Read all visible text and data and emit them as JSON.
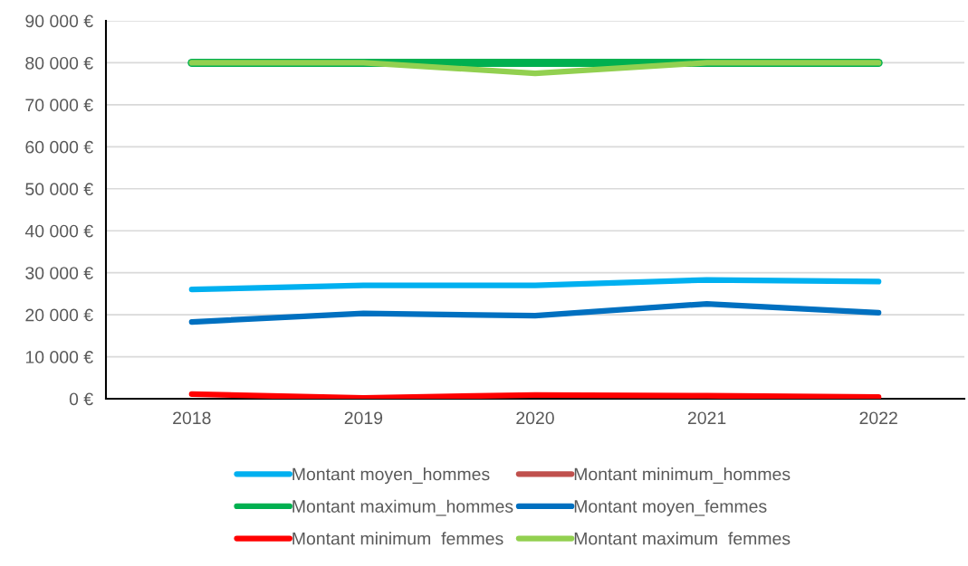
{
  "chart_data": {
    "type": "line",
    "categories": [
      "2018",
      "2019",
      "2020",
      "2021",
      "2022"
    ],
    "ylim": [
      0,
      90000
    ],
    "yticks": [
      {
        "value": 0,
        "label": "0 €"
      },
      {
        "value": 10000,
        "label": "10 000 €"
      },
      {
        "value": 20000,
        "label": "20 000 €"
      },
      {
        "value": 30000,
        "label": "30 000 €"
      },
      {
        "value": 40000,
        "label": "40 000 €"
      },
      {
        "value": 50000,
        "label": "50 000 €"
      },
      {
        "value": 60000,
        "label": "60 000 €"
      },
      {
        "value": 70000,
        "label": "70 000 €"
      },
      {
        "value": 80000,
        "label": "80 000 €"
      },
      {
        "value": 90000,
        "label": "90 000 €"
      }
    ],
    "grid": "y",
    "legend": "bottom",
    "marker": "none",
    "line_style": "solid",
    "series": [
      {
        "name": "Montant moyen_hommes",
        "color": "#00b0f0",
        "values": [
          26000,
          27000,
          27000,
          28300,
          27900
        ]
      },
      {
        "name": "Montant minimum_hommes",
        "color": "#c0504d",
        "values": [
          null,
          null,
          null,
          null,
          null
        ]
      },
      {
        "name": "Montant maximum_hommes",
        "color": "#00b050",
        "values": [
          80000,
          80000,
          80000,
          80000,
          80000
        ]
      },
      {
        "name": "Montant moyen_femmes",
        "color": "#0070c0",
        "values": [
          18300,
          20300,
          19800,
          22600,
          20500
        ]
      },
      {
        "name": "Montant minimum  femmes",
        "color": "#ff0000",
        "values": [
          1100,
          200,
          900,
          700,
          400
        ]
      },
      {
        "name": "Montant maximum  femmes",
        "color": "#92d050",
        "values": [
          80000,
          80000,
          77500,
          80000,
          80000
        ]
      }
    ]
  }
}
